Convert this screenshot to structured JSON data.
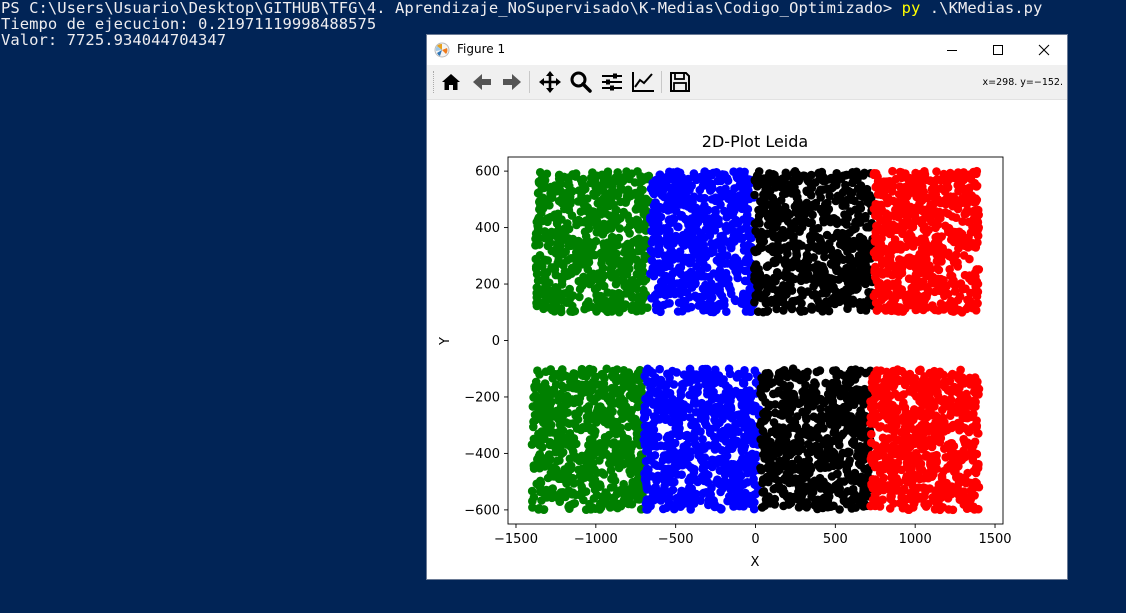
{
  "terminal": {
    "line1_prompt": "PS C:\\Users\\Usuario\\Desktop\\GITHUB\\TFG\\4. Aprendizaje_NoSupervisado\\K-Medias\\Codigo_Optimizado> ",
    "line1_cmd": "py",
    "line1_arg": " .\\KMedias.py",
    "line2": "Tiempo de ejecucion: 0.21971119998488575",
    "line3": "Valor: 7725.934044704347"
  },
  "window": {
    "title": "Figure 1",
    "icon": "matplotlib-figure-icon"
  },
  "toolbar": {
    "buttons": [
      "home-icon",
      "back-arrow-icon",
      "forward-arrow-icon",
      "pan-icon",
      "zoom-icon",
      "configure-subplots-icon",
      "edit-axis-icon",
      "save-icon"
    ],
    "coords": "x=298. y=−152."
  },
  "colors": {
    "terminal_bg": "#012456",
    "cluster_colors": [
      "green",
      "blue",
      "black",
      "red"
    ]
  },
  "chart_data": {
    "type": "scatter",
    "title": "2D-Plot Leida",
    "xlabel": "X",
    "ylabel": "Y",
    "xlim": [
      -1550,
      1550
    ],
    "ylim": [
      -650,
      650
    ],
    "xticks": [
      -1500,
      -1000,
      -500,
      0,
      500,
      1000,
      1500
    ],
    "xtick_labels": [
      "−1500",
      "−1000",
      "−500",
      "0",
      "500",
      "1000",
      "1500"
    ],
    "yticks": [
      -600,
      -400,
      -200,
      0,
      200,
      400,
      600
    ],
    "ytick_labels": [
      "−600",
      "−400",
      "−200",
      "0",
      "200",
      "400",
      "600"
    ],
    "grid": false,
    "legend": "none",
    "series": [
      {
        "color": "green",
        "regions": [
          {
            "x": [
              -1380,
              -660
            ],
            "y": [
              100,
              600
            ]
          },
          {
            "x": [
              -1400,
              -700
            ],
            "y": [
              -600,
              -100
            ]
          }
        ]
      },
      {
        "color": "blue",
        "regions": [
          {
            "x": [
              -660,
              -10
            ],
            "y": [
              100,
              600
            ]
          },
          {
            "x": [
              -700,
              30
            ],
            "y": [
              -600,
              -100
            ]
          }
        ]
      },
      {
        "color": "black",
        "regions": [
          {
            "x": [
              -10,
              740
            ],
            "y": [
              100,
              600
            ]
          },
          {
            "x": [
              30,
              720
            ],
            "y": [
              -600,
              -100
            ]
          }
        ]
      },
      {
        "color": "red",
        "regions": [
          {
            "x": [
              740,
              1400
            ],
            "y": [
              100,
              600
            ]
          },
          {
            "x": [
              720,
              1400
            ],
            "y": [
              -600,
              -100
            ]
          }
        ]
      }
    ],
    "points_per_region": 650
  }
}
